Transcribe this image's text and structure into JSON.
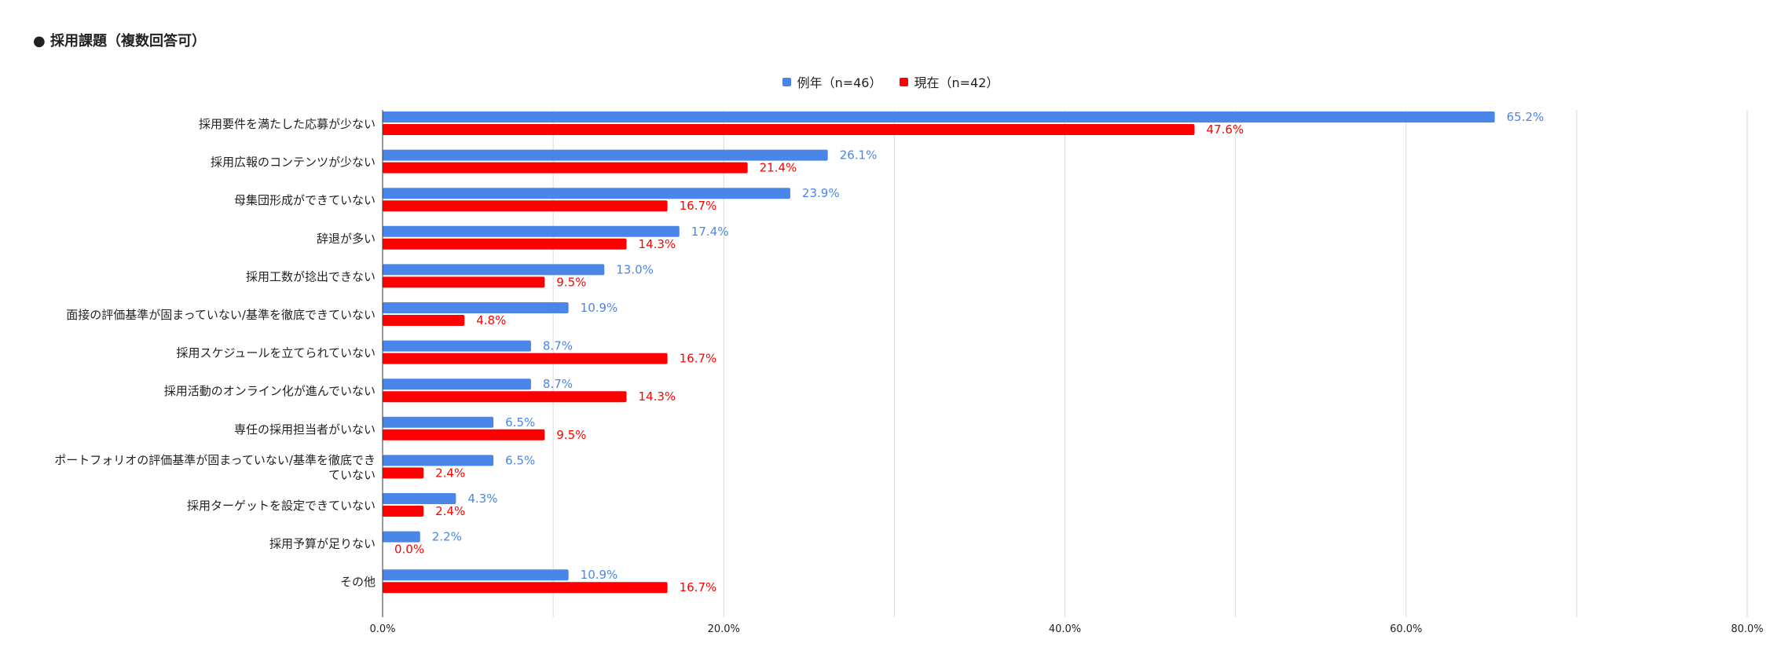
{
  "title": "● 採用課題（複数回答可）",
  "colors": {
    "prev": "#4a86e8",
    "curr": "#ff0000"
  },
  "chart_data": {
    "type": "bar",
    "orientation": "horizontal",
    "title": "● 採用課題（複数回答可）",
    "categories": [
      "採用要件を満たした応募が少ない",
      "採用広報のコンテンツが少ない",
      "母集団形成ができていない",
      "辞退が多い",
      "採用工数が捻出できない",
      "面接の評価基準が固まっていない/基準を徹底できていない",
      "採用スケジュールを立てられていない",
      "採用活動のオンライン化が進んでいない",
      "専任の採用担当者がいない",
      "ポートフォリオの評価基準が固まっていない/基準を徹底できていない",
      "採用ターゲットを設定できていない",
      "採用予算が足りない",
      "その他"
    ],
    "category_lines": [
      [
        "採用要件を満たした応募が少ない"
      ],
      [
        "採用広報のコンテンツが少ない"
      ],
      [
        "母集団形成ができていない"
      ],
      [
        "辞退が多い"
      ],
      [
        "採用工数が捻出できない"
      ],
      [
        "面接の評価基準が固まっていない/基準を徹底できていない"
      ],
      [
        "採用スケジュールを立てられていない"
      ],
      [
        "採用活動のオンライン化が進んでいない"
      ],
      [
        "専任の採用担当者がいない"
      ],
      [
        "ポートフォリオの評価基準が固まっていない/基準を徹底でき",
        "ていない"
      ],
      [
        "採用ターゲットを設定できていない"
      ],
      [
        "採用予算が足りない"
      ],
      [
        "その他"
      ]
    ],
    "series": [
      {
        "name": "例年（n=46）",
        "color": "#4a86e8",
        "values": [
          65.2,
          26.1,
          23.9,
          17.4,
          13.0,
          10.9,
          8.7,
          8.7,
          6.5,
          6.5,
          4.3,
          2.2,
          10.9
        ]
      },
      {
        "name": "現在（n=42）",
        "color": "#ff0000",
        "values": [
          47.6,
          21.4,
          16.7,
          14.3,
          9.5,
          4.8,
          16.7,
          14.3,
          9.5,
          2.4,
          2.4,
          0.0,
          16.7
        ]
      }
    ],
    "xlim": [
      0,
      80
    ],
    "xticks": [
      0,
      20,
      40,
      60,
      80
    ],
    "xtick_labels": [
      "0.0%",
      "20.0%",
      "40.0%",
      "60.0%",
      "80.0%"
    ],
    "value_suffix": "%",
    "grid": true,
    "legend_position": "top-center"
  }
}
